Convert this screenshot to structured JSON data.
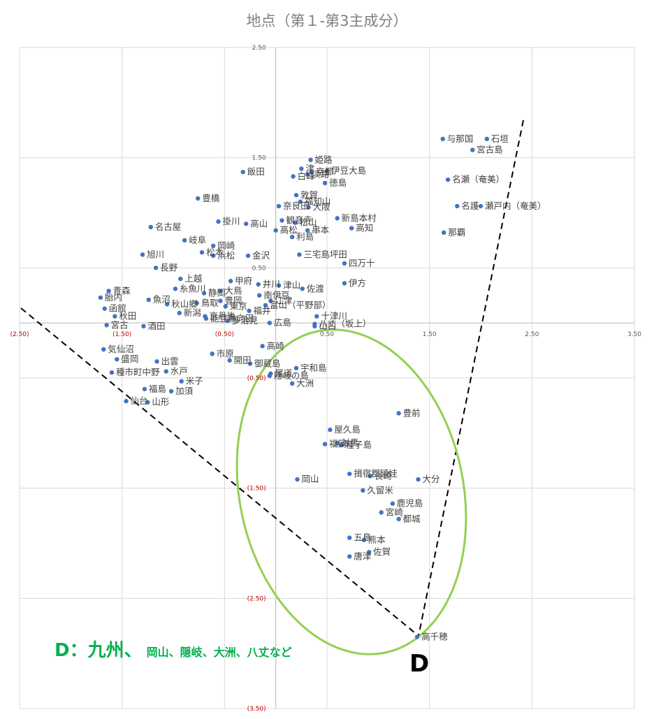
{
  "chart_data": {
    "type": "scatter",
    "title": "地点（第１-第3主成分）",
    "xlim": [
      -2.5,
      3.5
    ],
    "ylim": [
      -3.5,
      2.5
    ],
    "x_ticks": [
      "(2.50)",
      "(1.50)",
      "(0.50)",
      "0.50",
      "1.50",
      "2.50",
      "3.50"
    ],
    "y_ticks": [
      "2.50",
      "1.50",
      "0.50",
      "(0.50)",
      "(1.50)",
      "(2.50)",
      "(3.50)"
    ],
    "grid": true,
    "points": [
      {
        "label": "与那国",
        "x": 1.63,
        "y": 1.67
      },
      {
        "label": "石垣",
        "x": 2.06,
        "y": 1.67
      },
      {
        "label": "宮古島",
        "x": 1.92,
        "y": 1.57
      },
      {
        "label": "名瀬（奄美）",
        "x": 1.68,
        "y": 1.3
      },
      {
        "label": "名護",
        "x": 1.77,
        "y": 1.06
      },
      {
        "label": "瀬戸内（奄美）",
        "x": 2.0,
        "y": 1.06
      },
      {
        "label": "那覇",
        "x": 1.64,
        "y": 0.82
      },
      {
        "label": "姫路",
        "x": 0.34,
        "y": 1.48
      },
      {
        "label": "白峰",
        "x": 0.17,
        "y": 1.33
      },
      {
        "label": "津",
        "x": 0.25,
        "y": 1.4
      },
      {
        "label": "淡路",
        "x": 0.31,
        "y": 1.35
      },
      {
        "label": "京都",
        "x": 0.35,
        "y": 1.37
      },
      {
        "label": "伊豆大島",
        "x": 0.5,
        "y": 1.38
      },
      {
        "label": "飯田",
        "x": -0.32,
        "y": 1.37
      },
      {
        "label": "徳島",
        "x": 0.48,
        "y": 1.27
      },
      {
        "label": "豊橋",
        "x": -0.76,
        "y": 1.13
      },
      {
        "label": "奈良田",
        "x": 0.03,
        "y": 1.06
      },
      {
        "label": "敦賀",
        "x": 0.2,
        "y": 1.16
      },
      {
        "label": "福知山",
        "x": 0.24,
        "y": 1.1
      },
      {
        "label": "大阪",
        "x": 0.32,
        "y": 1.05
      },
      {
        "label": "掛川",
        "x": -0.56,
        "y": 0.92
      },
      {
        "label": "高山",
        "x": -0.29,
        "y": 0.9
      },
      {
        "label": "観音寺",
        "x": 0.06,
        "y": 0.93
      },
      {
        "label": "松山",
        "x": 0.19,
        "y": 0.91
      },
      {
        "label": "新島本村",
        "x": 0.6,
        "y": 0.95
      },
      {
        "label": "高松",
        "x": 0.0,
        "y": 0.84
      },
      {
        "label": "串本",
        "x": 0.31,
        "y": 0.84
      },
      {
        "label": "高知",
        "x": 0.74,
        "y": 0.86
      },
      {
        "label": "名古屋",
        "x": -1.22,
        "y": 0.87
      },
      {
        "label": "岐阜",
        "x": -0.89,
        "y": 0.75
      },
      {
        "label": "岡崎",
        "x": -0.61,
        "y": 0.7
      },
      {
        "label": "利島",
        "x": 0.16,
        "y": 0.78
      },
      {
        "label": "旭川",
        "x": -1.3,
        "y": 0.62
      },
      {
        "label": "松本",
        "x": -0.72,
        "y": 0.64
      },
      {
        "label": "浜松",
        "x": -0.61,
        "y": 0.61
      },
      {
        "label": "金沢",
        "x": -0.27,
        "y": 0.61
      },
      {
        "label": "三宅島坪田",
        "x": 0.23,
        "y": 0.62
      },
      {
        "label": "四万十",
        "x": 0.67,
        "y": 0.54
      },
      {
        "label": "長野",
        "x": -1.17,
        "y": 0.5
      },
      {
        "label": "上越",
        "x": -0.93,
        "y": 0.4
      },
      {
        "label": "糸魚川",
        "x": -0.98,
        "y": 0.31
      },
      {
        "label": "静岡",
        "x": -0.7,
        "y": 0.27
      },
      {
        "label": "大鳥",
        "x": -0.54,
        "y": 0.29
      },
      {
        "label": "甲府",
        "x": -0.44,
        "y": 0.38
      },
      {
        "label": "井川",
        "x": -0.17,
        "y": 0.35
      },
      {
        "label": "津山",
        "x": 0.03,
        "y": 0.34
      },
      {
        "label": "佐渡",
        "x": 0.26,
        "y": 0.31
      },
      {
        "label": "伊方",
        "x": 0.67,
        "y": 0.36
      },
      {
        "label": "胎内",
        "x": -1.71,
        "y": 0.23
      },
      {
        "label": "青森",
        "x": -1.63,
        "y": 0.29
      },
      {
        "label": "魚沼",
        "x": -1.24,
        "y": 0.21
      },
      {
        "label": "秋山郷",
        "x": -1.06,
        "y": 0.17
      },
      {
        "label": "鳥取",
        "x": -0.77,
        "y": 0.18
      },
      {
        "label": "豊岡",
        "x": -0.54,
        "y": 0.2
      },
      {
        "label": "南伊豆",
        "x": -0.16,
        "y": 0.25
      },
      {
        "label": "江津",
        "x": -0.05,
        "y": 0.2
      },
      {
        "label": "富山（平野部）",
        "x": -0.1,
        "y": 0.16
      },
      {
        "label": "東京",
        "x": -0.49,
        "y": 0.15
      },
      {
        "label": "福井",
        "x": -0.26,
        "y": 0.11
      },
      {
        "label": "函館",
        "x": -1.67,
        "y": 0.13
      },
      {
        "label": "新潟",
        "x": -0.94,
        "y": 0.09
      },
      {
        "label": "京丹後",
        "x": -0.69,
        "y": 0.06
      },
      {
        "label": "十津川",
        "x": 0.4,
        "y": 0.06
      },
      {
        "label": "秋田",
        "x": -1.57,
        "y": 0.06
      },
      {
        "label": "八丈（坂上）",
        "x": 0.38,
        "y": -0.01
      },
      {
        "label": "宮古",
        "x": -1.65,
        "y": -0.02
      },
      {
        "label": "酒田",
        "x": -1.29,
        "y": -0.03
      },
      {
        "label": "能登島向田",
        "x": -0.68,
        "y": 0.04
      },
      {
        "label": "多治見",
        "x": -0.47,
        "y": 0.02
      },
      {
        "label": "広島",
        "x": -0.06,
        "y": 0.0
      },
      {
        "label": "山口",
        "x": 0.38,
        "y": -0.03
      },
      {
        "label": "気仙沼",
        "x": -1.68,
        "y": -0.24
      },
      {
        "label": "出雲",
        "x": -1.16,
        "y": -0.35
      },
      {
        "label": "市原",
        "x": -0.62,
        "y": -0.28
      },
      {
        "label": "高崎",
        "x": -0.13,
        "y": -0.21
      },
      {
        "label": "盛岡",
        "x": -1.55,
        "y": -0.33
      },
      {
        "label": "開田",
        "x": -0.45,
        "y": -0.34
      },
      {
        "label": "御蔵島",
        "x": -0.25,
        "y": -0.37
      },
      {
        "label": "宇和島",
        "x": 0.2,
        "y": -0.41
      },
      {
        "label": "水戸",
        "x": -1.07,
        "y": -0.44
      },
      {
        "label": "種市町中野",
        "x": -1.6,
        "y": -0.45
      },
      {
        "label": "米子",
        "x": -0.92,
        "y": -0.53
      },
      {
        "label": "尾道",
        "x": -0.05,
        "y": -0.46
      },
      {
        "label": "大洲",
        "x": 0.16,
        "y": -0.55
      },
      {
        "label": "福島",
        "x": -1.28,
        "y": -0.6
      },
      {
        "label": "加須",
        "x": -1.02,
        "y": -0.62
      },
      {
        "label": "仙台",
        "x": -1.46,
        "y": -0.71
      },
      {
        "label": "山形",
        "x": -1.25,
        "y": -0.72
      },
      {
        "label": "隠岐の島",
        "x": -0.06,
        "y": -0.48
      },
      {
        "label": "豊前",
        "x": 1.2,
        "y": -0.82
      },
      {
        "label": "屋久島",
        "x": 0.53,
        "y": -0.97
      },
      {
        "label": "福岡",
        "x": 0.48,
        "y": -1.1
      },
      {
        "label": "対馬",
        "x": 0.6,
        "y": -1.09
      },
      {
        "label": "種子島",
        "x": 0.64,
        "y": -1.11
      },
      {
        "label": "揖宿郡頴娃",
        "x": 0.72,
        "y": -1.37
      },
      {
        "label": "岡山",
        "x": 0.21,
        "y": -1.42
      },
      {
        "label": "長崎",
        "x": 0.92,
        "y": -1.39
      },
      {
        "label": "大分",
        "x": 1.39,
        "y": -1.42
      },
      {
        "label": "久留米",
        "x": 0.85,
        "y": -1.52
      },
      {
        "label": "鹿児島",
        "x": 1.14,
        "y": -1.64
      },
      {
        "label": "宮崎",
        "x": 1.03,
        "y": -1.72
      },
      {
        "label": "都城",
        "x": 1.2,
        "y": -1.78
      },
      {
        "label": "五島",
        "x": 0.72,
        "y": -1.95
      },
      {
        "label": "熊本",
        "x": 0.86,
        "y": -1.97
      },
      {
        "label": "佐賀",
        "x": 0.91,
        "y": -2.08
      },
      {
        "label": "唐津",
        "x": 0.72,
        "y": -2.12
      },
      {
        "label": "高千穂",
        "x": 1.38,
        "y": -2.85
      }
    ]
  },
  "annotation": {
    "main": "D：九州、",
    "detail": "岡山、隠岐、大洲、八丈など",
    "marker": "D"
  },
  "colors": {
    "point": "#4472c4",
    "grid": "#d9d9d9",
    "axis": "#bfbfbf",
    "negative_tick": "#c00000",
    "positive_tick": "#595959",
    "ellipse": "#92d050",
    "annotation": "#00b050"
  }
}
